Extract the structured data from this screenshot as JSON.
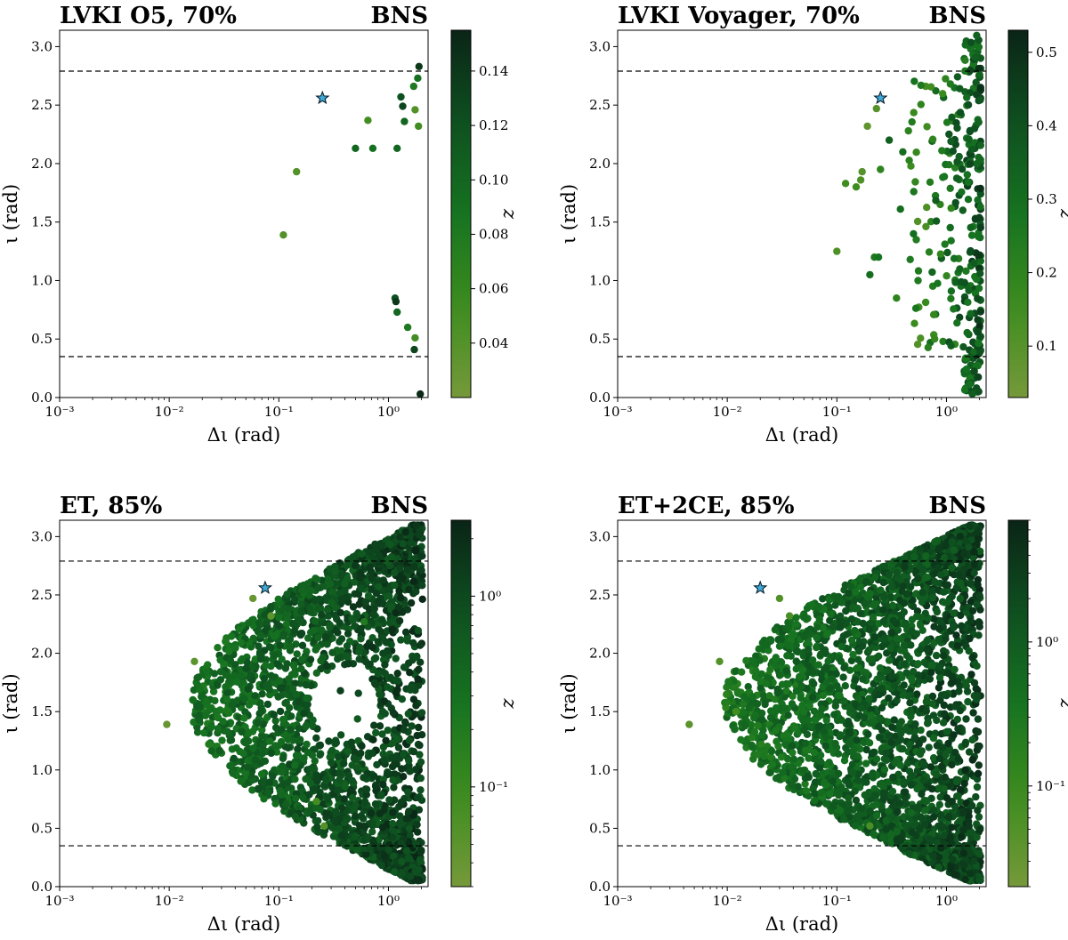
{
  "chart_data": [
    {
      "type": "scatter",
      "title": "LVKI O5, 70%",
      "tag": "BNS",
      "xlabel": "Δι (rad)",
      "ylabel": "ι (rad)",
      "xscale": "log",
      "xlim": [
        0.001,
        2.3
      ],
      "ylim": [
        0,
        3.14
      ],
      "xticks": [
        {
          "v": 0.001,
          "label": "10⁻³"
        },
        {
          "v": 0.01,
          "label": "10⁻²"
        },
        {
          "v": 0.1,
          "label": "10⁻¹"
        },
        {
          "v": 1,
          "label": "10⁰"
        }
      ],
      "yticks": [
        {
          "v": 0,
          "label": "0.0"
        },
        {
          "v": 0.5,
          "label": "0.5"
        },
        {
          "v": 1,
          "label": "1.0"
        },
        {
          "v": 1.5,
          "label": "1.5"
        },
        {
          "v": 2,
          "label": "2.0"
        },
        {
          "v": 2.5,
          "label": "2.5"
        },
        {
          "v": 3,
          "label": "3.0"
        }
      ],
      "hlines": [
        0.35,
        2.79
      ],
      "star": {
        "x": 0.25,
        "y": 2.56
      },
      "colorbar": {
        "label": "z",
        "scale": "linear",
        "range": [
          0.02,
          0.155
        ],
        "ticks": [
          {
            "v": 0.04,
            "label": "0.04"
          },
          {
            "v": 0.06,
            "label": "0.06"
          },
          {
            "v": 0.08,
            "label": "0.08"
          },
          {
            "v": 0.1,
            "label": "0.10"
          },
          {
            "v": 0.12,
            "label": "0.12"
          },
          {
            "v": 0.14,
            "label": "0.14"
          }
        ]
      },
      "points": [
        {
          "x": 0.11,
          "y": 1.39,
          "z": 0.04
        },
        {
          "x": 0.145,
          "y": 1.93,
          "z": 0.04
        },
        {
          "x": 0.65,
          "y": 2.37,
          "z": 0.05
        },
        {
          "x": 0.5,
          "y": 2.13,
          "z": 0.1
        },
        {
          "x": 0.72,
          "y": 2.13,
          "z": 0.09
        },
        {
          "x": 1.2,
          "y": 2.13,
          "z": 0.1
        },
        {
          "x": 1.3,
          "y": 2.57,
          "z": 0.12
        },
        {
          "x": 1.35,
          "y": 2.49,
          "z": 0.13
        },
        {
          "x": 1.4,
          "y": 2.36,
          "z": 0.1
        },
        {
          "x": 1.75,
          "y": 2.46,
          "z": 0.04
        },
        {
          "x": 1.88,
          "y": 2.32,
          "z": 0.05
        },
        {
          "x": 1.7,
          "y": 2.66,
          "z": 0.08
        },
        {
          "x": 1.85,
          "y": 2.73,
          "z": 0.09
        },
        {
          "x": 1.9,
          "y": 2.83,
          "z": 0.14
        },
        {
          "x": 1.15,
          "y": 0.85,
          "z": 0.12
        },
        {
          "x": 1.17,
          "y": 0.82,
          "z": 0.14
        },
        {
          "x": 1.2,
          "y": 0.73,
          "z": 0.1
        },
        {
          "x": 1.5,
          "y": 0.6,
          "z": 0.08
        },
        {
          "x": 1.75,
          "y": 0.51,
          "z": 0.05
        },
        {
          "x": 1.72,
          "y": 0.41,
          "z": 0.13
        },
        {
          "x": 1.95,
          "y": 0.03,
          "z": 0.15
        }
      ]
    },
    {
      "type": "scatter",
      "title": "LVKI Voyager, 70%",
      "tag": "BNS",
      "xlabel": "Δι (rad)",
      "ylabel": "ι (rad)",
      "xscale": "log",
      "xlim": [
        0.001,
        2.3
      ],
      "ylim": [
        0,
        3.14
      ],
      "xticks": [
        {
          "v": 0.001,
          "label": "10⁻³"
        },
        {
          "v": 0.01,
          "label": "10⁻²"
        },
        {
          "v": 0.1,
          "label": "10⁻¹"
        },
        {
          "v": 1,
          "label": "10⁰"
        }
      ],
      "yticks": [
        {
          "v": 0,
          "label": "0.0"
        },
        {
          "v": 0.5,
          "label": "0.5"
        },
        {
          "v": 1,
          "label": "1.0"
        },
        {
          "v": 1.5,
          "label": "1.5"
        },
        {
          "v": 2,
          "label": "2.0"
        },
        {
          "v": 2.5,
          "label": "2.5"
        },
        {
          "v": 3,
          "label": "3.0"
        }
      ],
      "hlines": [
        0.35,
        2.79
      ],
      "star": {
        "x": 0.25,
        "y": 2.56
      },
      "colorbar": {
        "label": "z",
        "scale": "linear",
        "range": [
          0.03,
          0.53
        ],
        "ticks": [
          {
            "v": 0.1,
            "label": "0.1"
          },
          {
            "v": 0.2,
            "label": "0.2"
          },
          {
            "v": 0.3,
            "label": "0.3"
          },
          {
            "v": 0.4,
            "label": "0.4"
          },
          {
            "v": 0.5,
            "label": "0.5"
          }
        ]
      },
      "points": [
        {
          "x": 0.1,
          "y": 1.25,
          "z": 0.12
        },
        {
          "x": 0.12,
          "y": 1.83,
          "z": 0.15
        },
        {
          "x": 0.15,
          "y": 1.8,
          "z": 0.15
        },
        {
          "x": 0.165,
          "y": 1.86,
          "z": 0.12
        },
        {
          "x": 0.17,
          "y": 1.93,
          "z": 0.1
        },
        {
          "x": 0.19,
          "y": 2.32,
          "z": 0.08
        },
        {
          "x": 0.2,
          "y": 1.05,
          "z": 0.3
        },
        {
          "x": 0.22,
          "y": 1.2,
          "z": 0.25
        },
        {
          "x": 0.23,
          "y": 2.47,
          "z": 0.1
        },
        {
          "x": 0.24,
          "y": 1.2,
          "z": 0.28
        },
        {
          "x": 0.25,
          "y": 1.95,
          "z": 0.2
        },
        {
          "x": 0.3,
          "y": 2.2,
          "z": 0.35
        },
        {
          "x": 0.35,
          "y": 0.85,
          "z": 0.2
        },
        {
          "x": 0.38,
          "y": 1.61,
          "z": 0.3
        },
        {
          "x": 0.4,
          "y": 2.1,
          "z": 0.3
        },
        {
          "x": 0.45,
          "y": 2.28,
          "z": 0.2
        },
        {
          "x": 0.5,
          "y": 1.4,
          "z": 0.3
        },
        {
          "x": 0.55,
          "y": 1.0,
          "z": 0.25
        }
      ],
      "dense": {
        "count": 320,
        "xmin": 0.45,
        "xmax": 2.05,
        "ymin": 0.03,
        "ymax": 3.1,
        "zmin": 0.05,
        "zmax": 0.5,
        "seed": 11,
        "mode": "edge"
      }
    },
    {
      "type": "scatter",
      "title": "ET, 85%",
      "tag": "BNS",
      "xlabel": "Δι (rad)",
      "ylabel": "ι (rad)",
      "xscale": "log",
      "xlim": [
        0.001,
        2.3
      ],
      "ylim": [
        0,
        3.14
      ],
      "xticks": [
        {
          "v": 0.001,
          "label": "10⁻³"
        },
        {
          "v": 0.01,
          "label": "10⁻²"
        },
        {
          "v": 0.1,
          "label": "10⁻¹"
        },
        {
          "v": 1,
          "label": "10⁰"
        }
      ],
      "yticks": [
        {
          "v": 0,
          "label": "0.0"
        },
        {
          "v": 0.5,
          "label": "0.5"
        },
        {
          "v": 1,
          "label": "1.0"
        },
        {
          "v": 1.5,
          "label": "1.5"
        },
        {
          "v": 2,
          "label": "2.0"
        },
        {
          "v": 2.5,
          "label": "2.5"
        },
        {
          "v": 3,
          "label": "3.0"
        }
      ],
      "hlines": [
        0.35,
        2.79
      ],
      "star": {
        "x": 0.075,
        "y": 2.56
      },
      "colorbar": {
        "label": "z",
        "scale": "log",
        "range": [
          0.03,
          2.5
        ],
        "ticks": [
          {
            "v": 0.1,
            "label": "10⁻¹"
          },
          {
            "v": 1,
            "label": "10⁰"
          }
        ]
      },
      "points": [
        {
          "x": 0.0095,
          "y": 1.39,
          "z": 0.04
        },
        {
          "x": 0.017,
          "y": 1.93,
          "z": 0.05
        },
        {
          "x": 0.058,
          "y": 2.47,
          "z": 0.04
        },
        {
          "x": 0.085,
          "y": 2.32,
          "z": 0.05
        },
        {
          "x": 0.26,
          "y": 0.52,
          "z": 0.06
        },
        {
          "x": 0.22,
          "y": 0.73,
          "z": 0.08
        },
        {
          "x": 0.6,
          "y": 2.27,
          "z": 0.2
        }
      ],
      "dense": {
        "count": 2400,
        "xmin": 0.012,
        "xmax": 2.05,
        "ymin": 0.05,
        "ymax": 3.1,
        "zmin": 0.08,
        "zmax": 2.5,
        "seed": 7,
        "mode": "cone-hole"
      }
    },
    {
      "type": "scatter",
      "title": "ET+2CE, 85%",
      "tag": "BNS",
      "xlabel": "Δι (rad)",
      "ylabel": "ι (rad)",
      "xscale": "log",
      "xlim": [
        0.001,
        2.3
      ],
      "ylim": [
        0,
        3.14
      ],
      "xticks": [
        {
          "v": 0.001,
          "label": "10⁻³"
        },
        {
          "v": 0.01,
          "label": "10⁻²"
        },
        {
          "v": 0.1,
          "label": "10⁻¹"
        },
        {
          "v": 1,
          "label": "10⁰"
        }
      ],
      "yticks": [
        {
          "v": 0,
          "label": "0.0"
        },
        {
          "v": 0.5,
          "label": "0.5"
        },
        {
          "v": 1,
          "label": "1.0"
        },
        {
          "v": 1.5,
          "label": "1.5"
        },
        {
          "v": 2,
          "label": "2.0"
        },
        {
          "v": 2.5,
          "label": "2.5"
        },
        {
          "v": 3,
          "label": "3.0"
        }
      ],
      "hlines": [
        0.35,
        2.79
      ],
      "star": {
        "x": 0.02,
        "y": 2.56
      },
      "colorbar": {
        "label": "z",
        "scale": "log",
        "range": [
          0.02,
          7
        ],
        "ticks": [
          {
            "v": 0.1,
            "label": "10⁻¹"
          },
          {
            "v": 1,
            "label": "10⁰"
          }
        ]
      },
      "points": [
        {
          "x": 0.0045,
          "y": 1.39,
          "z": 0.04
        },
        {
          "x": 0.0085,
          "y": 1.93,
          "z": 0.05
        },
        {
          "x": 0.03,
          "y": 2.47,
          "z": 0.05
        },
        {
          "x": 0.037,
          "y": 2.32,
          "z": 0.06
        },
        {
          "x": 0.012,
          "y": 1.5,
          "z": 0.08
        },
        {
          "x": 0.2,
          "y": 0.52,
          "z": 0.06
        }
      ],
      "dense": {
        "count": 3000,
        "xmin": 0.007,
        "xmax": 2.05,
        "ymin": 0.05,
        "ymax": 3.1,
        "zmin": 0.05,
        "zmax": 6.0,
        "seed": 3,
        "mode": "cone"
      }
    }
  ]
}
